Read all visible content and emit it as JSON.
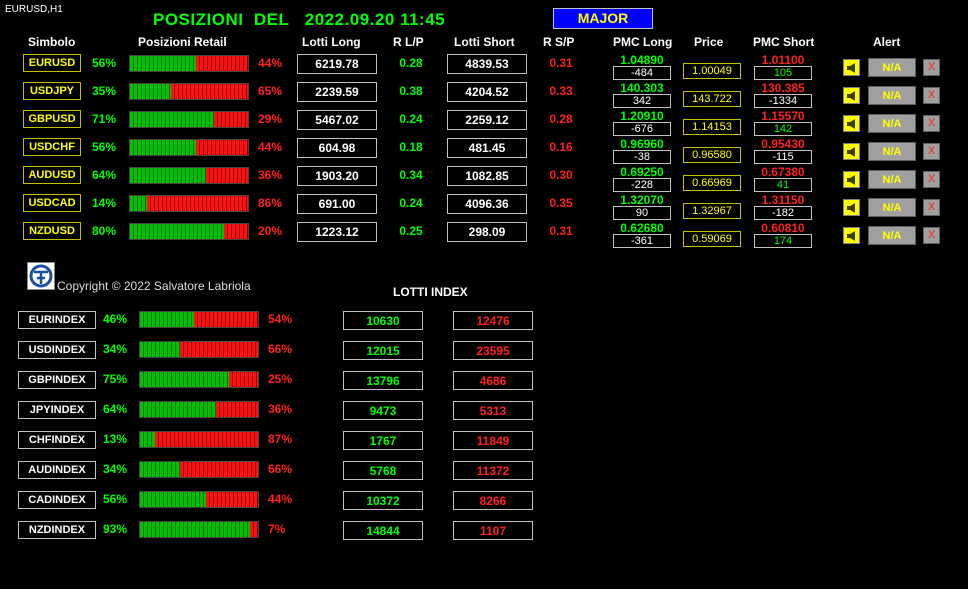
{
  "window": {
    "title": "EURUSD,H1"
  },
  "header": {
    "title_prefix": "POSIZIONI  DEL",
    "datetime": "2022.09.20 11:45",
    "group_button": "MAJOR"
  },
  "columns": {
    "symbol": "Simbolo",
    "retail": "Posizioni Retail",
    "lots_long": "Lotti Long",
    "r_lp": "R L/P",
    "lots_short": "Lotti Short",
    "r_sp": "R S/P",
    "pmc_long": "PMC Long",
    "price": "Price",
    "pmc_short": "PMC Short",
    "alert": "Alert"
  },
  "pairs": [
    {
      "symbol": "EURUSD",
      "long_pct": "56%",
      "short_pct": "44%",
      "long_share": 56,
      "lots_long": "6219.78",
      "r_lp": "0.28",
      "lots_short": "4839.53",
      "r_sp": "0.31",
      "pmc_long": "1.04890",
      "pmc_long_diff": "-484",
      "price": "1.00049",
      "pmc_short": "1.01100",
      "pmc_short_diff": "105",
      "alert": "N/A"
    },
    {
      "symbol": "USDJPY",
      "long_pct": "35%",
      "short_pct": "65%",
      "long_share": 35,
      "lots_long": "2239.59",
      "r_lp": "0.38",
      "lots_short": "4204.52",
      "r_sp": "0.33",
      "pmc_long": "140.303",
      "pmc_long_diff": "342",
      "price": "143.722",
      "pmc_short": "130.385",
      "pmc_short_diff": "-1334",
      "alert": "N/A"
    },
    {
      "symbol": "GBPUSD",
      "long_pct": "71%",
      "short_pct": "29%",
      "long_share": 71,
      "lots_long": "5467.02",
      "r_lp": "0.24",
      "lots_short": "2259.12",
      "r_sp": "0.28",
      "pmc_long": "1.20910",
      "pmc_long_diff": "-676",
      "price": "1.14153",
      "pmc_short": "1.15570",
      "pmc_short_diff": "142",
      "alert": "N/A"
    },
    {
      "symbol": "USDCHF",
      "long_pct": "56%",
      "short_pct": "44%",
      "long_share": 56,
      "lots_long": "604.98",
      "r_lp": "0.18",
      "lots_short": "481.45",
      "r_sp": "0.16",
      "pmc_long": "0.96960",
      "pmc_long_diff": "-38",
      "price": "0.96580",
      "pmc_short": "0.95430",
      "pmc_short_diff": "-115",
      "alert": "N/A"
    },
    {
      "symbol": "AUDUSD",
      "long_pct": "64%",
      "short_pct": "36%",
      "long_share": 64,
      "lots_long": "1903.20",
      "r_lp": "0.34",
      "lots_short": "1082.85",
      "r_sp": "0.30",
      "pmc_long": "0.69250",
      "pmc_long_diff": "-228",
      "price": "0.66969",
      "pmc_short": "0.67380",
      "pmc_short_diff": "41",
      "alert": "N/A"
    },
    {
      "symbol": "USDCAD",
      "long_pct": "14%",
      "short_pct": "86%",
      "long_share": 14,
      "lots_long": "691.00",
      "r_lp": "0.24",
      "lots_short": "4096.36",
      "r_sp": "0.35",
      "pmc_long": "1.32070",
      "pmc_long_diff": "90",
      "price": "1.32967",
      "pmc_short": "1.31150",
      "pmc_short_diff": "-182",
      "alert": "N/A"
    },
    {
      "symbol": "NZDUSD",
      "long_pct": "80%",
      "short_pct": "20%",
      "long_share": 80,
      "lots_long": "1223.12",
      "r_lp": "0.25",
      "lots_short": "298.09",
      "r_sp": "0.31",
      "pmc_long": "0.62680",
      "pmc_long_diff": "-361",
      "price": "0.59069",
      "pmc_short": "0.60810",
      "pmc_short_diff": "174",
      "alert": "N/A"
    }
  ],
  "alert_close": "X",
  "copyright": "Copyright © 2022 Salvatore Labriola",
  "lotti_index_title": "LOTTI INDEX",
  "indexes": [
    {
      "name": "EURINDEX",
      "long_pct": "46%",
      "short_pct": "54%",
      "long_share": 46,
      "lots_long": "10630",
      "lots_short": "12476"
    },
    {
      "name": "USDINDEX",
      "long_pct": "34%",
      "short_pct": "66%",
      "long_share": 34,
      "lots_long": "12015",
      "lots_short": "23595"
    },
    {
      "name": "GBPINDEX",
      "long_pct": "75%",
      "short_pct": "25%",
      "long_share": 75,
      "lots_long": "13796",
      "lots_short": "4686"
    },
    {
      "name": "JPYINDEX",
      "long_pct": "64%",
      "short_pct": "36%",
      "long_share": 64,
      "lots_long": "9473",
      "lots_short": "5313"
    },
    {
      "name": "CHFINDEX",
      "long_pct": "13%",
      "short_pct": "87%",
      "long_share": 13,
      "lots_long": "1767",
      "lots_short": "11849"
    },
    {
      "name": "AUDINDEX",
      "long_pct": "34%",
      "short_pct": "66%",
      "long_share": 34,
      "lots_long": "5768",
      "lots_short": "11372"
    },
    {
      "name": "CADINDEX",
      "long_pct": "56%",
      "short_pct": "44%",
      "long_share": 56,
      "lots_long": "10372",
      "lots_short": "8266"
    },
    {
      "name": "NZDINDEX",
      "long_pct": "93%",
      "short_pct": "7%",
      "long_share": 93,
      "lots_long": "14844",
      "lots_short": "1107"
    }
  ],
  "colors": {
    "long": "#00ff00",
    "short": "#ff2020",
    "symbol": "#ffff00",
    "accent_button": "#0000ff"
  },
  "icons": {
    "alert": "megaphone-icon",
    "close": "close-icon",
    "logo": "app-logo"
  }
}
